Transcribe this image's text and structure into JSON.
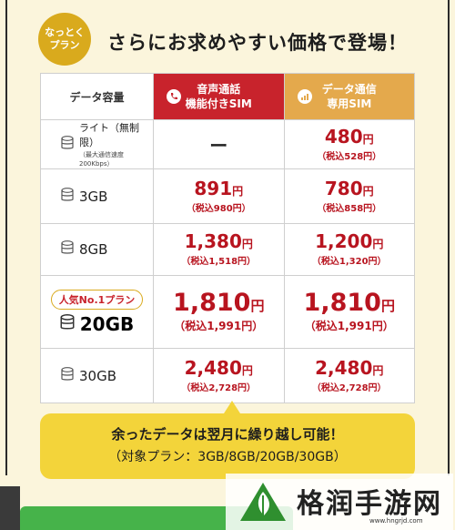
{
  "header": {
    "badge": "なっとく\nプラン",
    "headline": "さらにお求めやすい価格で登場！"
  },
  "table": {
    "col_capacity": "データ容量",
    "col_voice": "音声通話\n機能付きSIM",
    "col_data": "データ通信\n専用SIM",
    "rows": [
      {
        "capacity": "ライト（無制限）",
        "sub": "（最大通信速度200Kbps）",
        "voice_main": "",
        "voice_yen": "",
        "voice_tax": "",
        "data_main": "480",
        "data_yen": "円",
        "data_tax": "（税込528円）",
        "dash": "ー"
      },
      {
        "capacity": "3GB",
        "voice_main": "891",
        "voice_yen": "円",
        "voice_tax": "（税込980円）",
        "data_main": "780",
        "data_yen": "円",
        "data_tax": "（税込858円）"
      },
      {
        "capacity": "8GB",
        "voice_main": "1,380",
        "voice_yen": "円",
        "voice_tax": "（税込1,518円）",
        "data_main": "1,200",
        "data_yen": "円",
        "data_tax": "（税込1,320円）"
      },
      {
        "tag": "人気No.1プラン",
        "capacity": "20GB",
        "voice_main": "1,810",
        "voice_yen": "円",
        "voice_tax": "（税込1,991円）",
        "data_main": "1,810",
        "data_yen": "円",
        "data_tax": "（税込1,991円）"
      },
      {
        "capacity": "30GB",
        "voice_main": "2,480",
        "voice_yen": "円",
        "voice_tax": "（税込2,728円）",
        "data_main": "2,480",
        "data_yen": "円",
        "data_tax": "（税込2,728円）"
      }
    ]
  },
  "note": {
    "line1": "余ったデータは翌月に繰り越し可能！",
    "line2": "（対象プラン：3GB/8GB/20GB/30GB）"
  },
  "watermark": {
    "text": "格润手游网",
    "url": "www.hngrjd.com"
  },
  "colors": {
    "voice_header": "#c8232c",
    "data_header": "#e4a94c",
    "price": "#b8141f",
    "note_bg": "#f3d43a",
    "badge": "#d9aa1d"
  }
}
